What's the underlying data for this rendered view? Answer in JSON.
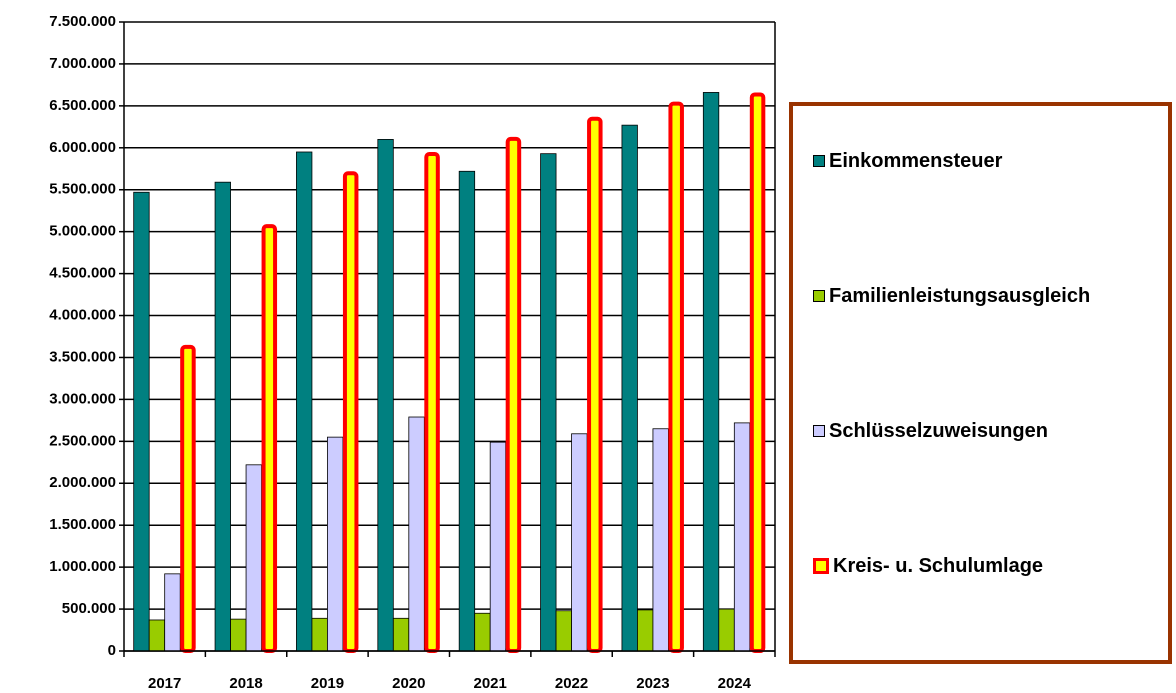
{
  "chart_data": {
    "type": "bar",
    "categories": [
      "2017",
      "2018",
      "2019",
      "2020",
      "2021",
      "2022",
      "2023",
      "2024"
    ],
    "series": [
      {
        "name": "Einkommensteuer",
        "color": "#008080",
        "values": [
          5470000,
          5590000,
          5950000,
          6100000,
          5720000,
          5930000,
          6270000,
          6660000
        ]
      },
      {
        "name": "Familienleistungsausgleich",
        "color": "#99cc00",
        "values": [
          370000,
          380000,
          390000,
          390000,
          450000,
          480000,
          490000,
          500000
        ]
      },
      {
        "name": "Schlüsselzuweisungen",
        "color": "#ccccff",
        "values": [
          920000,
          2220000,
          2550000,
          2790000,
          2490000,
          2590000,
          2650000,
          2720000
        ]
      },
      {
        "name": "Kreis- u. Schulumlage",
        "color": "#ffff00",
        "edgecolor": "#ff0000",
        "values": [
          3650000,
          5090000,
          5720000,
          5950000,
          6130000,
          6370000,
          6550000,
          6660000
        ]
      }
    ],
    "ylim": [
      0,
      7500000
    ],
    "yticks": [
      0,
      {
        "value": 500000,
        "label": "500.000"
      },
      {
        "value": 1000000,
        "label": "1.000.000"
      },
      {
        "value": 1500000,
        "label": "1.500.000"
      },
      {
        "value": 2000000,
        "label": "2.000.000"
      },
      {
        "value": 2500000,
        "label": "2.500.000"
      },
      {
        "value": 3000000,
        "label": "3.000.000"
      },
      {
        "value": 3500000,
        "label": "3.500.000"
      },
      {
        "value": 4000000,
        "label": "4.000.000"
      },
      {
        "value": 4500000,
        "label": "4.500.000"
      },
      {
        "value": 5000000,
        "label": "5.000.000"
      },
      {
        "value": 5500000,
        "label": "5.500.000"
      },
      {
        "value": 6000000,
        "label": "6.000.000"
      },
      {
        "value": 6500000,
        "label": "6.500.000"
      },
      {
        "value": 7000000,
        "label": "7.000.000"
      },
      {
        "value": 7500000,
        "label": "7.500.000"
      }
    ],
    "grid": true
  }
}
